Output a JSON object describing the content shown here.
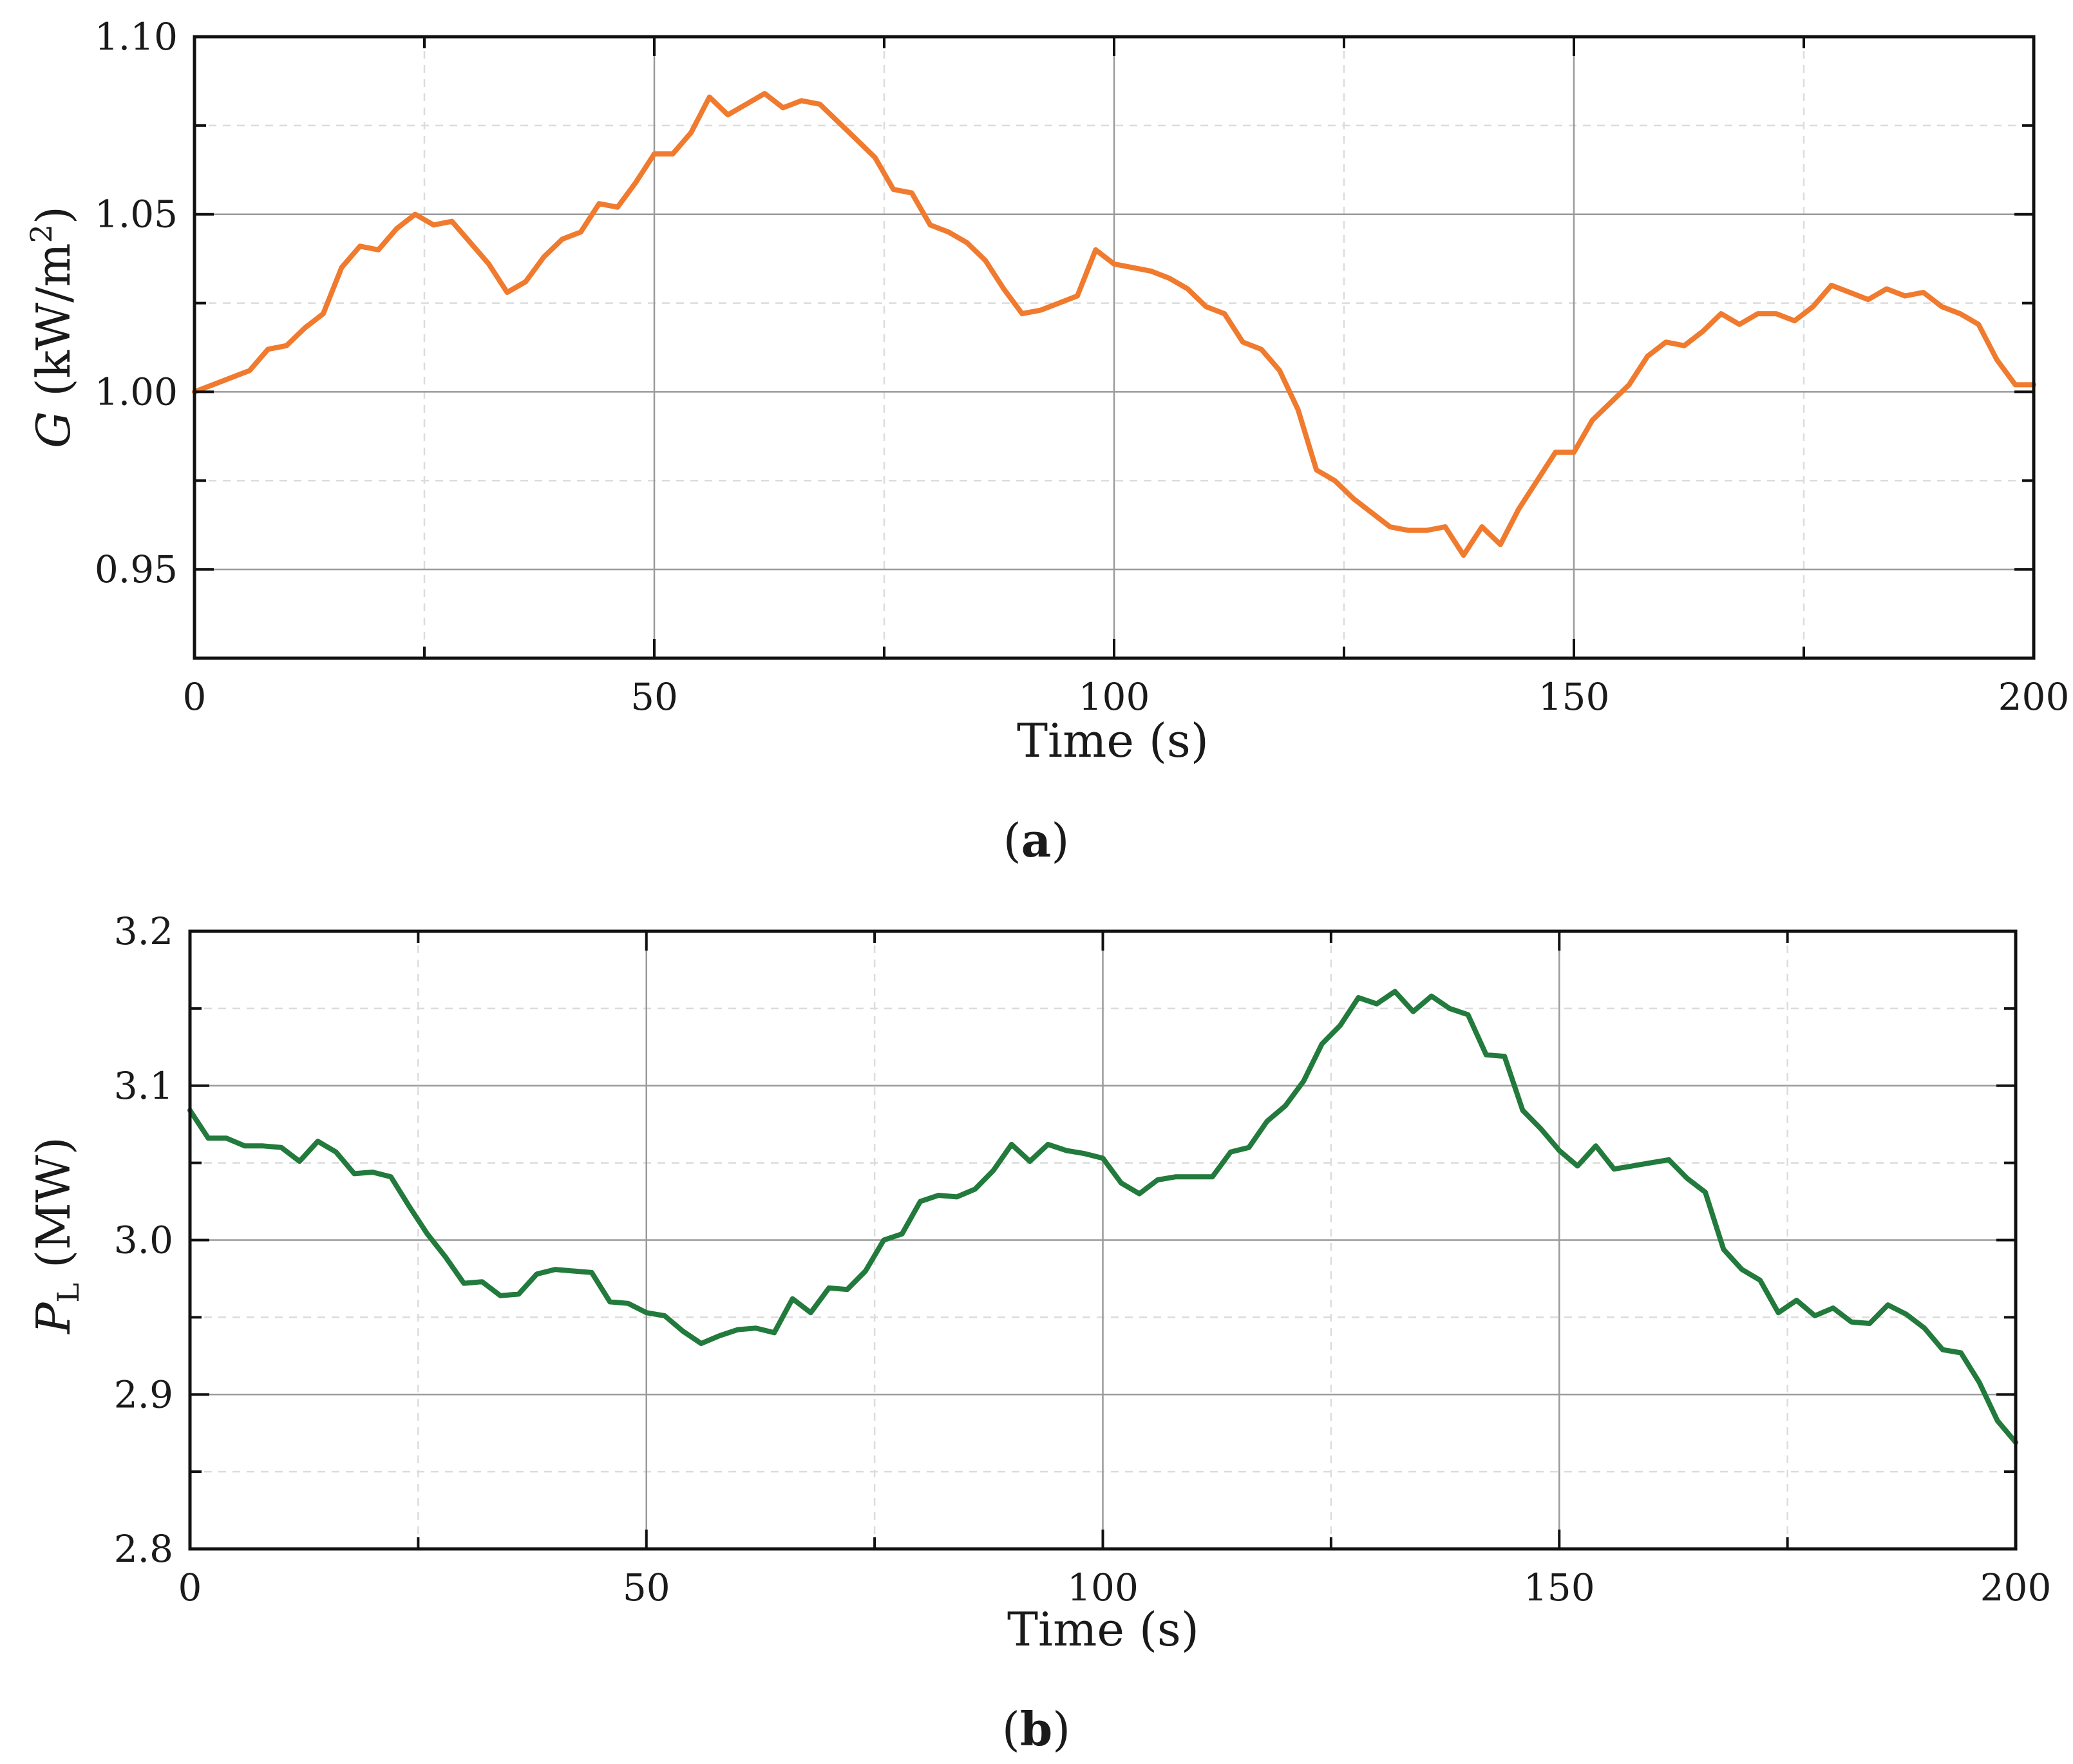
{
  "chart_data": [
    {
      "type": "line",
      "panel_label": "a",
      "xlabel": "Time (s)",
      "ylabel": {
        "symbol": "G",
        "unit_prefix": " (kW/m",
        "unit_power": "2",
        "unit_suffix": ")"
      },
      "xlim": [
        0,
        200
      ],
      "ylim": [
        0.925,
        1.1
      ],
      "xticks": [
        0,
        50,
        100,
        150,
        200
      ],
      "xtick_labels": [
        "0",
        "50",
        "100",
        "150",
        "200"
      ],
      "yticks": [
        0.95,
        1.0,
        1.05,
        1.1
      ],
      "ytick_labels": [
        "0.95",
        "1.00",
        "1.05",
        "1.10"
      ],
      "x_minor_step": 25,
      "y_minor_step": 0.025,
      "grid": true,
      "line_color": "#f07a2e",
      "series": [
        {
          "x": [
            0,
            2,
            4,
            6,
            8,
            10,
            12,
            14,
            16,
            18,
            20,
            22,
            24,
            26,
            28,
            30,
            32,
            34,
            36,
            38,
            40,
            42,
            44,
            46,
            48,
            50,
            52,
            54,
            56,
            58,
            60,
            62,
            64,
            66,
            68,
            70,
            72,
            74,
            76,
            78,
            80,
            82,
            84,
            86,
            88,
            90,
            92,
            94,
            96,
            98,
            100,
            102,
            104,
            106,
            108,
            110,
            112,
            114,
            116,
            118,
            120,
            122,
            124,
            126,
            128,
            130,
            132,
            134,
            136,
            138,
            140,
            142,
            144,
            146,
            148,
            150,
            152,
            154,
            156,
            158,
            160,
            162,
            164,
            166,
            168,
            170,
            172,
            174,
            176,
            178,
            180,
            182,
            184,
            186,
            188,
            190,
            192,
            194,
            196,
            198,
            200
          ],
          "y": [
            1.0,
            1.002,
            1.004,
            1.006,
            1.012,
            1.013,
            1.018,
            1.022,
            1.035,
            1.041,
            1.04,
            1.046,
            1.05,
            1.047,
            1.048,
            1.042,
            1.036,
            1.028,
            1.031,
            1.038,
            1.043,
            1.045,
            1.053,
            1.052,
            1.059,
            1.067,
            1.067,
            1.073,
            1.083,
            1.078,
            1.081,
            1.084,
            1.08,
            1.082,
            1.081,
            1.076,
            1.071,
            1.066,
            1.057,
            1.056,
            1.047,
            1.045,
            1.042,
            1.037,
            1.029,
            1.022,
            1.023,
            1.025,
            1.027,
            1.04,
            1.036,
            1.035,
            1.034,
            1.032,
            1.029,
            1.024,
            1.022,
            1.014,
            1.012,
            1.006,
            0.995,
            0.978,
            0.975,
            0.97,
            0.966,
            0.962,
            0.961,
            0.961,
            0.962,
            0.954,
            0.962,
            0.957,
            0.967,
            0.975,
            0.983,
            0.983,
            0.992,
            0.997,
            1.002,
            1.01,
            1.014,
            1.013,
            1.017,
            1.022,
            1.019,
            1.022,
            1.022,
            1.02,
            1.024,
            1.03,
            1.028,
            1.026,
            1.029,
            1.027,
            1.028,
            1.024,
            1.022,
            1.019,
            1.009,
            1.002,
            1.002
          ]
        }
      ]
    },
    {
      "type": "line",
      "panel_label": "b",
      "xlabel": "Time (s)",
      "ylabel": {
        "symbol": "P",
        "subscript": "L",
        "unit": " (MW)"
      },
      "xlim": [
        0,
        200
      ],
      "ylim": [
        2.8,
        3.2
      ],
      "xticks": [
        0,
        50,
        100,
        150,
        200
      ],
      "xtick_labels": [
        "0",
        "50",
        "100",
        "150",
        "200"
      ],
      "yticks": [
        2.8,
        2.9,
        3.0,
        3.1,
        3.2
      ],
      "ytick_labels": [
        "2.8",
        "2.9",
        "3.0",
        "3.1",
        "3.2"
      ],
      "x_minor_step": 25,
      "y_minor_step": 0.05,
      "grid": true,
      "line_color": "#227a3c",
      "series": [
        {
          "x": [
            0,
            2,
            4,
            6,
            8,
            10,
            12,
            14,
            16,
            18,
            20,
            22,
            24,
            26,
            28,
            30,
            32,
            34,
            36,
            38,
            40,
            42,
            44,
            46,
            48,
            50,
            52,
            54,
            56,
            58,
            60,
            62,
            64,
            66,
            68,
            70,
            72,
            74,
            76,
            78,
            80,
            82,
            84,
            86,
            88,
            90,
            92,
            94,
            96,
            98,
            100,
            102,
            104,
            106,
            108,
            110,
            112,
            114,
            116,
            118,
            120,
            122,
            124,
            126,
            128,
            130,
            132,
            134,
            136,
            138,
            140,
            142,
            144,
            146,
            148,
            150,
            152,
            154,
            156,
            158,
            160,
            162,
            164,
            166,
            168,
            170,
            172,
            174,
            176,
            178,
            180,
            182,
            184,
            186,
            188,
            190,
            192,
            194,
            196,
            198,
            200
          ],
          "y": [
            3.084,
            3.066,
            3.066,
            3.061,
            3.061,
            3.06,
            3.051,
            3.064,
            3.057,
            3.043,
            3.044,
            3.041,
            3.022,
            3.004,
            2.989,
            2.972,
            2.973,
            2.964,
            2.965,
            2.978,
            2.981,
            2.98,
            2.979,
            2.96,
            2.959,
            2.953,
            2.951,
            2.941,
            2.933,
            2.938,
            2.942,
            2.943,
            2.94,
            2.962,
            2.953,
            2.969,
            2.968,
            2.98,
            3.0,
            3.004,
            3.025,
            3.029,
            3.028,
            3.033,
            3.045,
            3.062,
            3.051,
            3.062,
            3.058,
            3.056,
            3.053,
            3.037,
            3.03,
            3.039,
            3.041,
            3.041,
            3.041,
            3.057,
            3.06,
            3.077,
            3.087,
            3.103,
            3.127,
            3.139,
            3.157,
            3.153,
            3.161,
            3.148,
            3.158,
            3.15,
            3.146,
            3.12,
            3.119,
            3.084,
            3.072,
            3.058,
            3.048,
            3.061,
            3.046,
            3.048,
            3.05,
            3.052,
            3.04,
            3.031,
            2.994,
            2.981,
            2.974,
            2.953,
            2.961,
            2.951,
            2.956,
            2.947,
            2.946,
            2.958,
            2.952,
            2.943,
            2.929,
            2.927,
            2.908,
            2.883,
            2.869
          ]
        }
      ]
    }
  ]
}
